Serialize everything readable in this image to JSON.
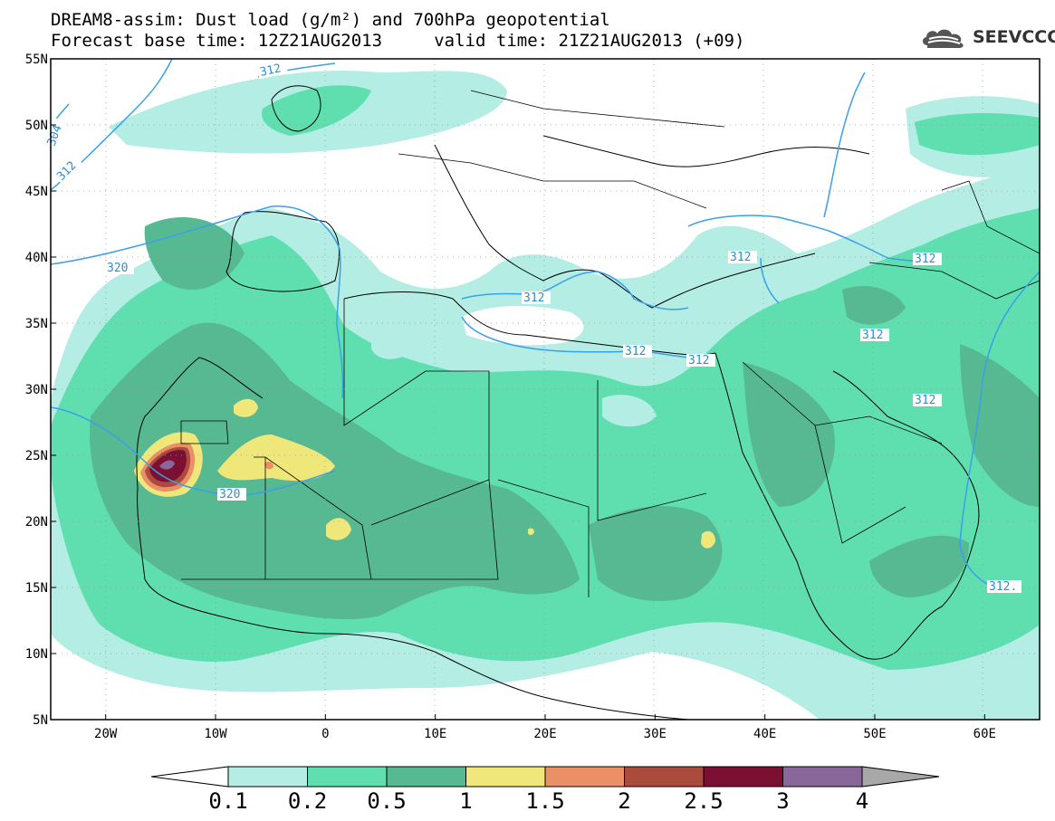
{
  "title_line1": "DREAM8-assim: Dust load (g/m²) and 700hPa geopotential",
  "title_line2": "Forecast base time: 12Z21AUG2013     valid time: 21Z21AUG2013 (+09)",
  "logo": {
    "text": "SEEVCCC",
    "icon": "cloud-icon"
  },
  "map": {
    "lon_range": [
      -25,
      65
    ],
    "lat_range": [
      5,
      55
    ],
    "lat_labels": [
      "55N",
      "50N",
      "45N",
      "40N",
      "35N",
      "30N",
      "25N",
      "20N",
      "15N",
      "10N",
      "5N"
    ],
    "lon_labels": [
      "20W",
      "10W",
      "0",
      "10E",
      "20E",
      "30E",
      "40E",
      "50E",
      "60E"
    ],
    "grid": "dotted"
  },
  "contours": [
    {
      "label": "312"
    },
    {
      "label": "304"
    },
    {
      "label": "312"
    },
    {
      "label": "320"
    },
    {
      "label": "312"
    },
    {
      "label": "312"
    },
    {
      "label": "312"
    },
    {
      "label": "312"
    },
    {
      "label": "312"
    },
    {
      "label": "312"
    },
    {
      "label": "320"
    },
    {
      "label": "312."
    }
  ],
  "colorbar": {
    "labels": [
      "0.1",
      "0.2",
      "0.5",
      "1",
      "1.5",
      "2",
      "2.5",
      "3",
      "4"
    ],
    "colors": [
      "#ffffff",
      "#b4ede3",
      "#5fdfb0",
      "#56b992",
      "#f0e77a",
      "#ea8f66",
      "#ab4b3d",
      "#7c1033",
      "#8a679b",
      "#a8a8a8"
    ]
  }
}
